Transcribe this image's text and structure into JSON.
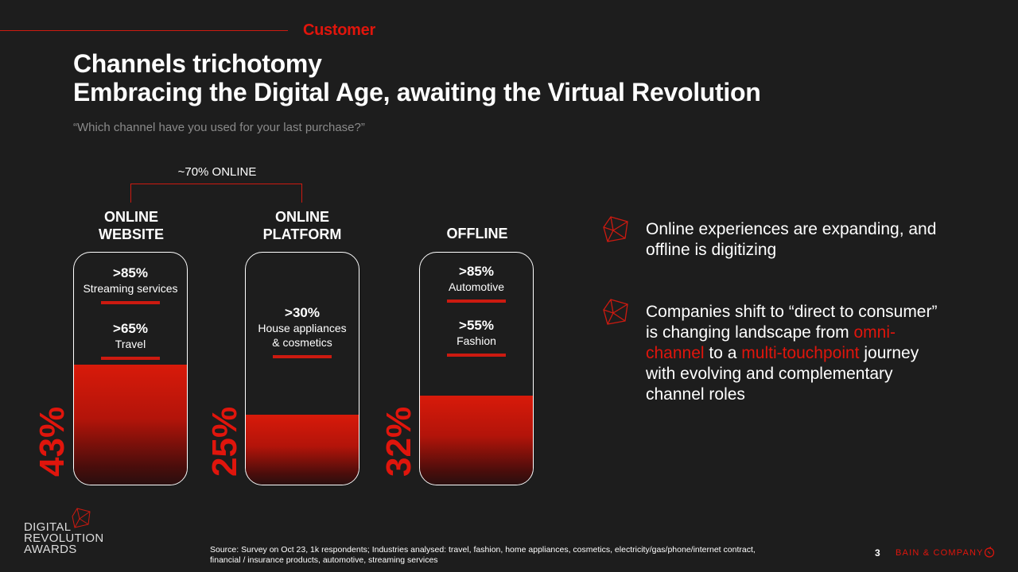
{
  "header": {
    "section": "Customer"
  },
  "title": {
    "line1": "Channels trichotomy",
    "line2": "Embracing the Digital Age, awaiting the Virtual Revolution"
  },
  "subtitle": "“Which channel have you used for your last purchase?”",
  "bracket_label": "~70% ONLINE",
  "columns": [
    {
      "head1": "ONLINE",
      "head2": "WEBSITE",
      "percent": "43%",
      "share": 0.43,
      "stats": [
        {
          "value": ">85%",
          "label": "Streaming services"
        },
        {
          "value": ">65%",
          "label": "Travel"
        }
      ]
    },
    {
      "head1": "ONLINE",
      "head2": "PLATFORM",
      "percent": "25%",
      "share": 0.25,
      "stats": [
        {
          "value": ">30%",
          "label1": "House appliances",
          "label2": "& cosmetics"
        }
      ]
    },
    {
      "head1": "OFFLINE",
      "percent": "32%",
      "share": 0.32,
      "stats": [
        {
          "value": ">85%",
          "label": "Automotive"
        },
        {
          "value": ">55%",
          "label": "Fashion"
        }
      ]
    }
  ],
  "points": [
    {
      "text": "Online experiences are expanding, and offline is digitizing"
    },
    {
      "pre": "Companies shift to “direct to consumer” is changing landscape from ",
      "hl1": "omni-channel",
      "mid": " to a ",
      "hl2": "multi-touchpoint",
      "post": " journey with evolving and complementary channel roles"
    }
  ],
  "footer": {
    "source": "Source: Survey on Oct 23, 1k respondents; Industries analysed: travel, fashion, home appliances, cosmetics, electricity/gas/phone/internet contract, financial / insurance products, automotive, streaming services",
    "page": "3",
    "brand": "BAIN & COMPANY",
    "logo_lines": [
      "DIGITAL",
      "REVOLUTION",
      "AWARDS"
    ]
  },
  "colors": {
    "accent": "#e0150c",
    "background": "#1d1d1d"
  },
  "icons": [
    "cube-icon",
    "bain-logo-icon"
  ]
}
